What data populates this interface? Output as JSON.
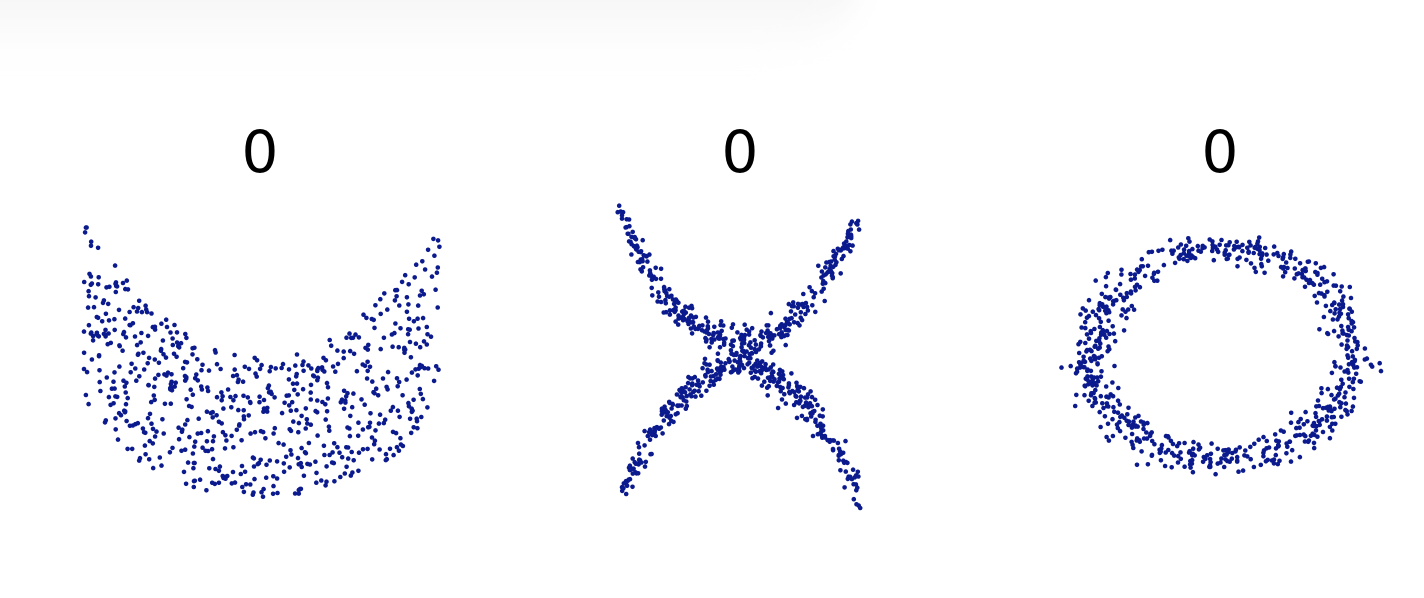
{
  "panels": [
    {
      "title": "0"
    },
    {
      "title": "0"
    },
    {
      "title": "0"
    }
  ],
  "chart_data": [
    {
      "type": "scatter",
      "title": "0",
      "shape": "crescent",
      "point_color": "#0b1a8c",
      "axes_visible": false,
      "grid": false,
      "xlim": [
        -1.0,
        1.0
      ],
      "ylim": [
        -1.0,
        1.0
      ],
      "approx_points": 700
    },
    {
      "type": "scatter",
      "title": "0",
      "shape": "x-cross",
      "point_color": "#0b1a8c",
      "axes_visible": false,
      "grid": false,
      "xlim": [
        -1.0,
        1.0
      ],
      "ylim": [
        -1.0,
        1.0
      ],
      "approx_points": 700
    },
    {
      "type": "scatter",
      "title": "0",
      "shape": "ring",
      "point_color": "#0b1a8c",
      "axes_visible": false,
      "grid": false,
      "xlim": [
        -1.0,
        1.0
      ],
      "ylim": [
        -1.0,
        1.0
      ],
      "approx_points": 700
    }
  ]
}
